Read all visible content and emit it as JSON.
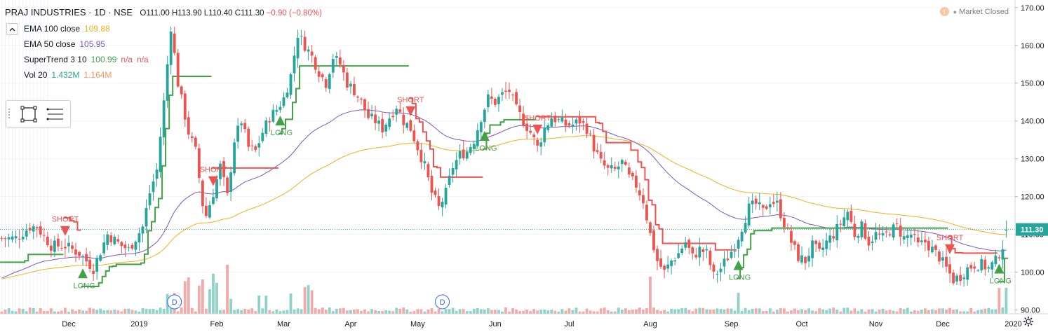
{
  "header": {
    "symbol": "PRAJ INDUSTRIES · 1D · NSE",
    "ohlc": "O111.00 H113.90 L110.40 C111.30",
    "change": "−0.90 (−0.80%)"
  },
  "indicators": [
    {
      "name": "EMA 100 close",
      "values": [
        "109.88"
      ],
      "colors": [
        "#f5b01a"
      ]
    },
    {
      "name": "EMA 50 close",
      "values": [
        "105.95"
      ],
      "colors": [
        "#7e57c2"
      ]
    },
    {
      "name": "SuperTrend 3 10",
      "values": [
        "100.99",
        "n/a",
        "n/a"
      ],
      "colors": [
        "#43a047",
        "#ef5350",
        "#ef5350"
      ]
    },
    {
      "name": "Vol 20",
      "values": [
        "1.432M",
        "1.164M"
      ],
      "colors": [
        "#26a69a",
        "#f7965f"
      ]
    }
  ],
  "market_status": "Market Closed",
  "icons": {
    "collapse": "chevron-up-icon",
    "rectangle_tool": "rectangle-tool-icon",
    "menu": "lines-menu-icon",
    "alert": "alert-icon",
    "settings": "gear-icon"
  },
  "colors": {
    "up": "#26a69a",
    "down": "#ef5350",
    "ema100": "#f5b01a",
    "ema50": "#7e57c2",
    "st_up": "#43a047",
    "st_down": "#ef5350",
    "vol_up": "#8fd3c8",
    "vol_down": "#f4a9a8",
    "last_price_bg": "#26a69a"
  },
  "chart_data": {
    "type": "candlestick",
    "title": "PRAJ INDUSTRIES · 1D · NSE",
    "y_axis": {
      "ticks": [
        90,
        100,
        110,
        120,
        130,
        140,
        150,
        160,
        170
      ],
      "ylim": [
        89,
        172
      ]
    },
    "x_axis": {
      "labels": [
        "Dec",
        "2019",
        "Feb",
        "Mar",
        "Apr",
        "May",
        "Jun",
        "Jul",
        "Aug",
        "Sep",
        "Oct",
        "Nov",
        "Dec",
        "2020"
      ],
      "bar_index": [
        0,
        1,
        2,
        3,
        4,
        5,
        6,
        7,
        8,
        9,
        10,
        11,
        12,
        13
      ],
      "positions": [
        19,
        39,
        61,
        80,
        99,
        118,
        140,
        161,
        184,
        207,
        227,
        248,
        267,
        287
      ]
    },
    "last_price": "111.30",
    "closes_anchor": [
      [
        0,
        109
      ],
      [
        4,
        109
      ],
      [
        8,
        112
      ],
      [
        10,
        112
      ],
      [
        14,
        107
      ],
      [
        18,
        107
      ],
      [
        22,
        105
      ],
      [
        26,
        101
      ],
      [
        30,
        110
      ],
      [
        34,
        107
      ],
      [
        36,
        106
      ],
      [
        38,
        109
      ],
      [
        40,
        112
      ],
      [
        42,
        121
      ],
      [
        44,
        127
      ],
      [
        46,
        145
      ],
      [
        48,
        165
      ],
      [
        50,
        150
      ],
      [
        53,
        137
      ],
      [
        55,
        132
      ],
      [
        57,
        118
      ],
      [
        58,
        115
      ],
      [
        60,
        121
      ],
      [
        62,
        128
      ],
      [
        64,
        120
      ],
      [
        66,
        135
      ],
      [
        68,
        140
      ],
      [
        70,
        133
      ],
      [
        72,
        132
      ],
      [
        74,
        137
      ],
      [
        76,
        141
      ],
      [
        78,
        143
      ],
      [
        80,
        146
      ],
      [
        82,
        152
      ],
      [
        84,
        163
      ],
      [
        86,
        160
      ],
      [
        88,
        157
      ],
      [
        90,
        153
      ],
      [
        92,
        150
      ],
      [
        94,
        157
      ],
      [
        96,
        155
      ],
      [
        98,
        150
      ],
      [
        100,
        148
      ],
      [
        102,
        145
      ],
      [
        104,
        141
      ],
      [
        106,
        140
      ],
      [
        108,
        138
      ],
      [
        110,
        141
      ],
      [
        112,
        144
      ],
      [
        114,
        140
      ],
      [
        116,
        138
      ],
      [
        118,
        133
      ],
      [
        120,
        128
      ],
      [
        122,
        121
      ],
      [
        124,
        117
      ],
      [
        126,
        121
      ],
      [
        128,
        128
      ],
      [
        130,
        131
      ],
      [
        132,
        132
      ],
      [
        134,
        135
      ],
      [
        136,
        141
      ],
      [
        138,
        146
      ],
      [
        140,
        145
      ],
      [
        142,
        147
      ],
      [
        144,
        148
      ],
      [
        146,
        143
      ],
      [
        148,
        140
      ],
      [
        150,
        137
      ],
      [
        152,
        133
      ],
      [
        154,
        138
      ],
      [
        156,
        141
      ],
      [
        158,
        140
      ],
      [
        160,
        139
      ],
      [
        162,
        139
      ],
      [
        164,
        140
      ],
      [
        166,
        138
      ],
      [
        168,
        133
      ],
      [
        170,
        129
      ],
      [
        172,
        127
      ],
      [
        174,
        127
      ],
      [
        176,
        129
      ],
      [
        178,
        125
      ],
      [
        180,
        123
      ],
      [
        182,
        119
      ],
      [
        184,
        110
      ],
      [
        186,
        103
      ],
      [
        188,
        100
      ],
      [
        190,
        103
      ],
      [
        192,
        105
      ],
      [
        194,
        108
      ],
      [
        196,
        104
      ],
      [
        198,
        106
      ],
      [
        200,
        105
      ],
      [
        202,
        99
      ],
      [
        204,
        101
      ],
      [
        206,
        104
      ],
      [
        208,
        107
      ],
      [
        210,
        112
      ],
      [
        212,
        117
      ],
      [
        214,
        118
      ],
      [
        216,
        116
      ],
      [
        218,
        119
      ],
      [
        220,
        118
      ],
      [
        222,
        113
      ],
      [
        224,
        108
      ],
      [
        226,
        104
      ],
      [
        228,
        103
      ],
      [
        230,
        107
      ],
      [
        232,
        105
      ],
      [
        234,
        108
      ],
      [
        236,
        110
      ],
      [
        238,
        113
      ],
      [
        240,
        116
      ],
      [
        242,
        110
      ],
      [
        244,
        112
      ],
      [
        246,
        108
      ],
      [
        248,
        110
      ],
      [
        250,
        109
      ],
      [
        252,
        111
      ],
      [
        254,
        112
      ],
      [
        256,
        109
      ],
      [
        258,
        110
      ],
      [
        260,
        107
      ],
      [
        262,
        108
      ],
      [
        264,
        106
      ],
      [
        266,
        104
      ],
      [
        268,
        101
      ],
      [
        270,
        98
      ],
      [
        272,
        99
      ],
      [
        274,
        101
      ],
      [
        276,
        102
      ],
      [
        278,
        102
      ],
      [
        280,
        101
      ],
      [
        282,
        103
      ],
      [
        284,
        107
      ],
      [
        285,
        111.3
      ]
    ],
    "series": [
      {
        "name": "EMA 100 close",
        "last": 109.88
      },
      {
        "name": "EMA 50 close",
        "last": 105.95
      },
      {
        "name": "SuperTrend 3 10",
        "last": 100.99
      },
      {
        "name": "Vol 20",
        "last": "1.432M"
      }
    ],
    "signals": [
      {
        "bar": 18,
        "type": "SHORT"
      },
      {
        "bar": 23,
        "type": "LONG"
      },
      {
        "bar": 60,
        "type": "SHORT"
      },
      {
        "bar": 79,
        "type": "LONG"
      },
      {
        "bar": 116,
        "type": "SHORT"
      },
      {
        "bar": 137,
        "type": "LONG"
      },
      {
        "bar": 152,
        "type": "SHORT"
      },
      {
        "bar": 209,
        "type": "LONG"
      },
      {
        "bar": 269,
        "type": "SHORT"
      },
      {
        "bar": 283,
        "type": "LONG"
      }
    ],
    "signal_labels": {
      "SHORT": "SHORT",
      "LONG": "LONG"
    },
    "dividend_markers": {
      "label": "D",
      "bars": [
        49,
        125
      ]
    }
  }
}
